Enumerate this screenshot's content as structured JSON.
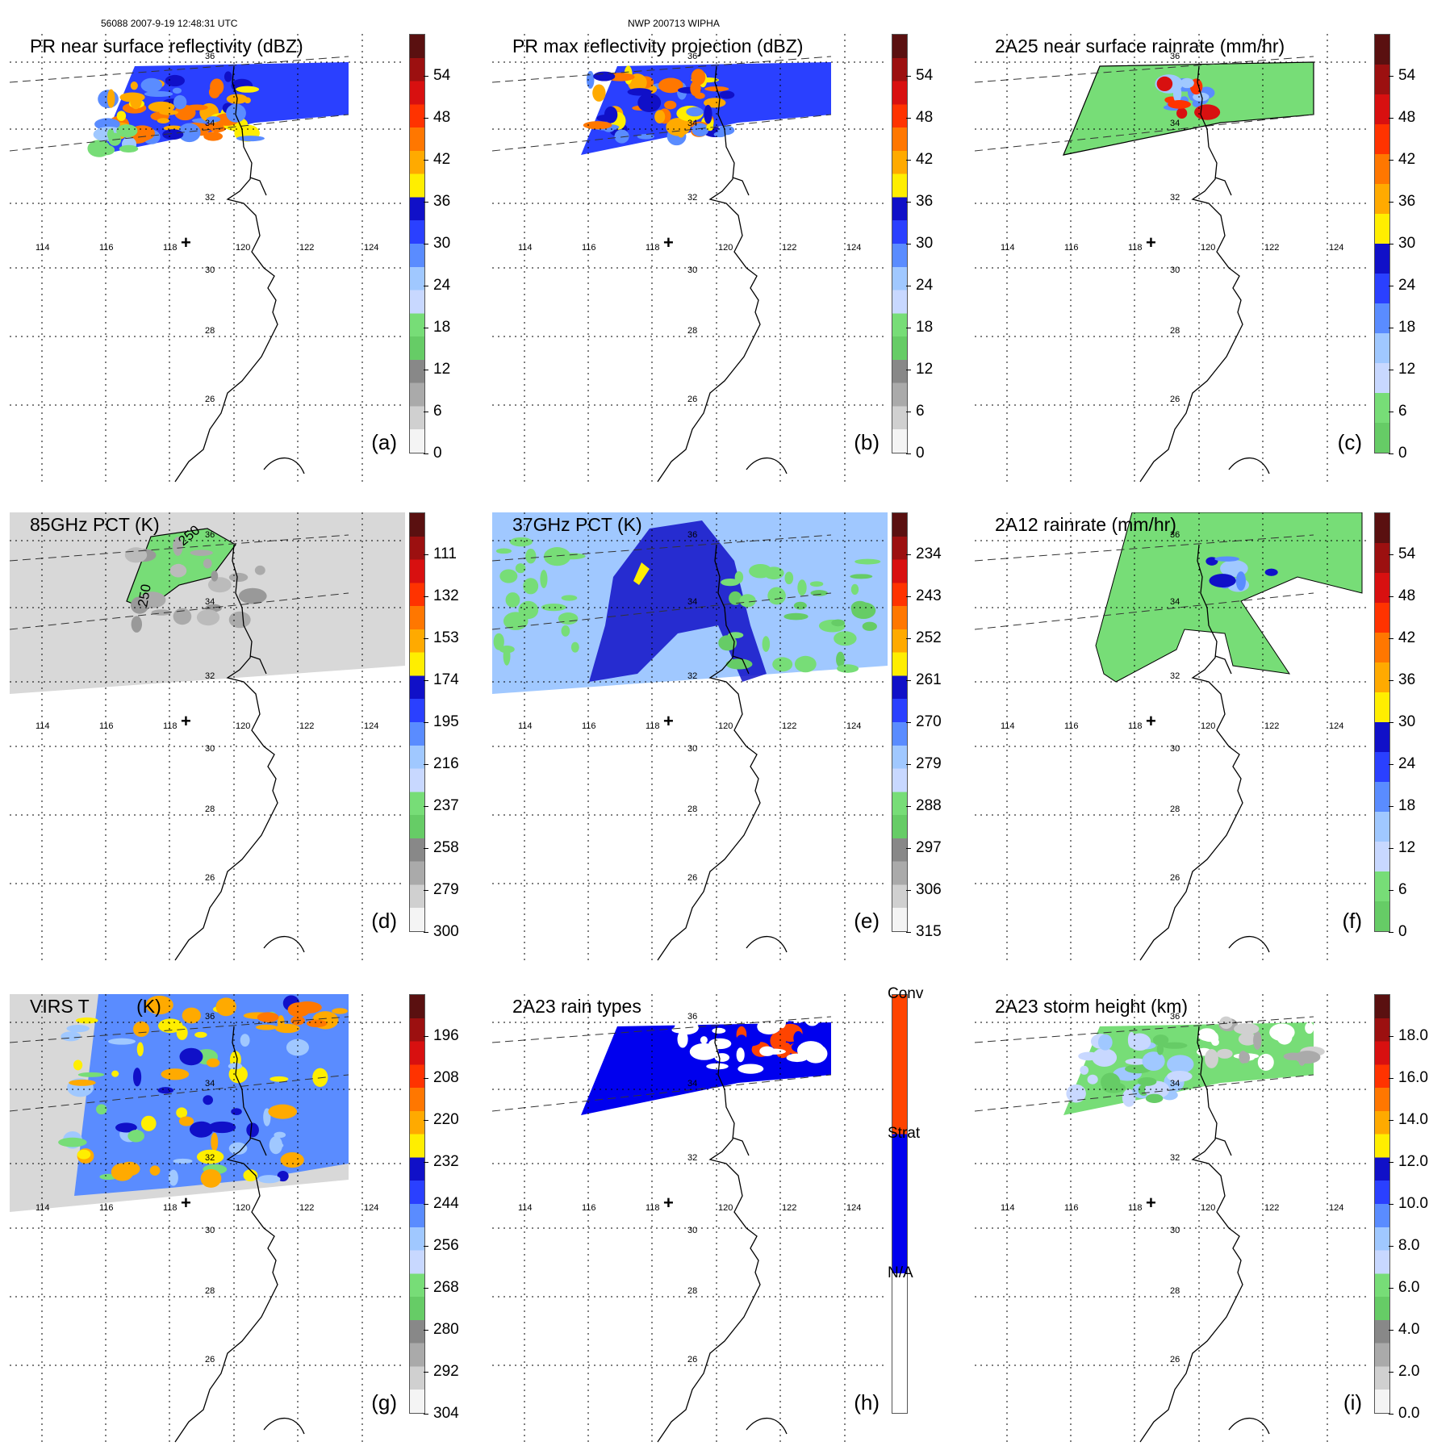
{
  "header": {
    "left": "56088 2007-9-19 12:48:31 UTC",
    "center": "NWP 200713 WIPHA"
  },
  "map": {
    "lon_labels": [
      "114",
      "116",
      "118",
      "120",
      "122",
      "124"
    ],
    "lat_labels": [
      "36",
      "34",
      "32",
      "30",
      "28",
      "26"
    ],
    "contour_labels": [
      "250",
      "250"
    ],
    "center_marker": "+"
  },
  "panels": [
    {
      "id": "a",
      "title": "PR near surface reflectivity (dBZ)",
      "label": "(a)",
      "ticks": [
        "54",
        "48",
        "42",
        "36",
        "30",
        "24",
        "18",
        "12",
        "6",
        "0"
      ],
      "colors": [
        "#5a1010",
        "#9c1010",
        "#d81010",
        "#ff3300",
        "#ff7700",
        "#ffaa00",
        "#ffee00",
        "#1010c8",
        "#2a40ff",
        "#5a8cff",
        "#a0c8ff",
        "#c8d8ff",
        "#77dd77",
        "#66cc66",
        "#888888",
        "#aaaaaa",
        "#d0d0d0",
        "#f4f4f4"
      ]
    },
    {
      "id": "b",
      "title": "PR max reflectivity projection (dBZ)",
      "label": "(b)",
      "ticks": [
        "54",
        "48",
        "42",
        "36",
        "30",
        "24",
        "18",
        "12",
        "6",
        "0"
      ],
      "colors": [
        "#5a1010",
        "#9c1010",
        "#d81010",
        "#ff3300",
        "#ff7700",
        "#ffaa00",
        "#ffee00",
        "#1010c8",
        "#2a40ff",
        "#5a8cff",
        "#a0c8ff",
        "#c8d8ff",
        "#77dd77",
        "#66cc66",
        "#888888",
        "#aaaaaa",
        "#d0d0d0",
        "#f4f4f4"
      ]
    },
    {
      "id": "c",
      "title": "2A25 near surface rainrate (mm/hr)",
      "label": "(c)",
      "ticks": [
        "54",
        "48",
        "42",
        "36",
        "30",
        "24",
        "18",
        "12",
        "6",
        "0"
      ],
      "colors": [
        "#5a1010",
        "#9c1010",
        "#d81010",
        "#ff3300",
        "#ff7700",
        "#ffaa00",
        "#ffee00",
        "#1010c8",
        "#2a40ff",
        "#5a8cff",
        "#a0c8ff",
        "#c8d8ff",
        "#77dd77",
        "#66cc66"
      ]
    },
    {
      "id": "d",
      "title": "85GHz PCT (K)",
      "label": "(d)",
      "ticks": [
        "111",
        "132",
        "153",
        "174",
        "195",
        "216",
        "237",
        "258",
        "279",
        "300"
      ],
      "colors": [
        "#5a1010",
        "#9c1010",
        "#d81010",
        "#ff3300",
        "#ff7700",
        "#ffaa00",
        "#ffee00",
        "#1010c8",
        "#2a40ff",
        "#5a8cff",
        "#a0c8ff",
        "#c8d8ff",
        "#77dd77",
        "#66cc66",
        "#888888",
        "#aaaaaa",
        "#d0d0d0",
        "#f4f4f4"
      ]
    },
    {
      "id": "e",
      "title": "37GHz PCT (K)",
      "label": "(e)",
      "ticks": [
        "234",
        "243",
        "252",
        "261",
        "270",
        "279",
        "288",
        "297",
        "306",
        "315"
      ],
      "colors": [
        "#5a1010",
        "#9c1010",
        "#d81010",
        "#ff3300",
        "#ff7700",
        "#ffaa00",
        "#ffee00",
        "#1010c8",
        "#2a40ff",
        "#5a8cff",
        "#a0c8ff",
        "#c8d8ff",
        "#77dd77",
        "#66cc66",
        "#888888",
        "#aaaaaa",
        "#d0d0d0",
        "#f4f4f4"
      ]
    },
    {
      "id": "f",
      "title": "2A12 rainrate (mm/hr)",
      "label": "(f)",
      "ticks": [
        "54",
        "48",
        "42",
        "36",
        "30",
        "24",
        "18",
        "12",
        "6",
        "0"
      ],
      "colors": [
        "#5a1010",
        "#9c1010",
        "#d81010",
        "#ff3300",
        "#ff7700",
        "#ffaa00",
        "#ffee00",
        "#1010c8",
        "#2a40ff",
        "#5a8cff",
        "#a0c8ff",
        "#c8d8ff",
        "#77dd77",
        "#66cc66"
      ]
    },
    {
      "id": "g",
      "title": "VIRS T",
      "title_suffix": "(K)",
      "label": "(g)",
      "ticks": [
        "196",
        "208",
        "220",
        "232",
        "244",
        "256",
        "268",
        "280",
        "292",
        "304"
      ],
      "colors": [
        "#5a1010",
        "#9c1010",
        "#d81010",
        "#ff3300",
        "#ff7700",
        "#ffaa00",
        "#ffee00",
        "#1010c8",
        "#2a40ff",
        "#5a8cff",
        "#a0c8ff",
        "#c8d8ff",
        "#77dd77",
        "#66cc66",
        "#888888",
        "#aaaaaa",
        "#d0d0d0",
        "#f4f4f4"
      ]
    },
    {
      "id": "h",
      "title": "2A23 rain types",
      "label": "(h)",
      "categories": [
        "Conv",
        "Strat",
        "N/A"
      ],
      "colors": [
        "#ff4400",
        "#0000ee",
        "#ffffff"
      ]
    },
    {
      "id": "i",
      "title": "2A23 storm height (km)",
      "label": "(i)",
      "ticks": [
        "18.0",
        "16.0",
        "14.0",
        "12.0",
        "10.0",
        "8.0",
        "6.0",
        "4.0",
        "2.0",
        "0.0"
      ],
      "colors": [
        "#5a1010",
        "#9c1010",
        "#d81010",
        "#ff3300",
        "#ff7700",
        "#ffaa00",
        "#ffee00",
        "#1010c8",
        "#2a40ff",
        "#5a8cff",
        "#a0c8ff",
        "#c8d8ff",
        "#77dd77",
        "#66cc66",
        "#888888",
        "#aaaaaa",
        "#d0d0d0",
        "#f4f4f4"
      ]
    }
  ]
}
